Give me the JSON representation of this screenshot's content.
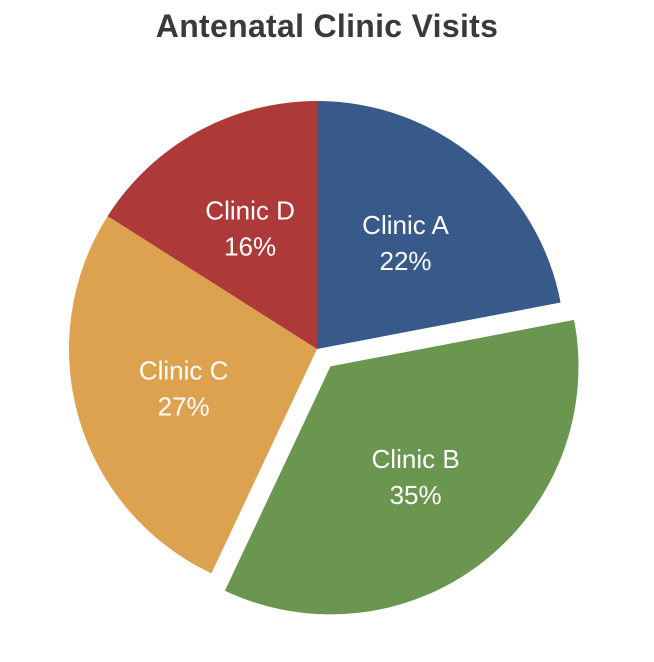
{
  "chart_data": {
    "type": "pie",
    "title": "Antenatal Clinic Visits",
    "slices": [
      {
        "label": "Clinic A",
        "value": 22,
        "display": "22%",
        "color": "#385a8a",
        "exploded": false
      },
      {
        "label": "Clinic B",
        "value": 35,
        "display": "35%",
        "color": "#6a9650",
        "exploded": true
      },
      {
        "label": "Clinic C",
        "value": 27,
        "display": "27%",
        "color": "#dda24f",
        "exploded": false
      },
      {
        "label": "Clinic D",
        "value": 16,
        "display": "16%",
        "color": "#ad3a38",
        "exploded": false
      }
    ],
    "start_angle": "12 o'clock",
    "direction": "clockwise",
    "legend": "none"
  }
}
